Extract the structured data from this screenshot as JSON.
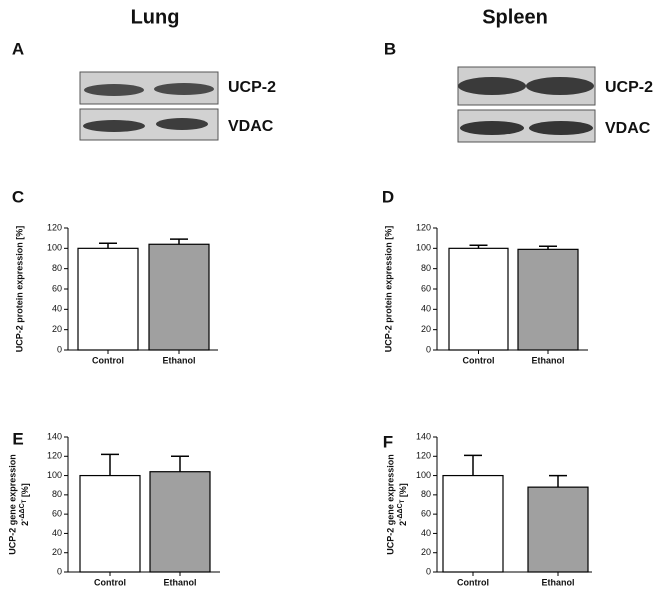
{
  "columns": [
    "Lung",
    "Spleen"
  ],
  "panel_letters": [
    "A",
    "B"
  ],
  "blots": [
    {
      "labels": [
        "UCP-2",
        "VDAC"
      ]
    },
    {
      "labels": [
        "UCP-2",
        "VDAC"
      ]
    }
  ],
  "chart_data": [
    {
      "type": "bar",
      "panel": "C",
      "ylabel": "UCP-2 protein expression [%]",
      "categories": [
        "Control",
        "Ethanol"
      ],
      "values": [
        100,
        104
      ],
      "errors": [
        5,
        5
      ],
      "colors": [
        "#ffffff",
        "#a0a0a0"
      ],
      "ylim": [
        0,
        120
      ],
      "yticks": [
        0,
        20,
        40,
        60,
        80,
        100,
        120
      ]
    },
    {
      "type": "bar",
      "panel": "D",
      "ylabel": "UCP-2 protein expression [%]",
      "categories": [
        "Control",
        "Ethanol"
      ],
      "values": [
        100,
        99
      ],
      "errors": [
        3,
        3
      ],
      "colors": [
        "#ffffff",
        "#a0a0a0"
      ],
      "ylim": [
        0,
        120
      ],
      "yticks": [
        0,
        20,
        40,
        60,
        80,
        100,
        120
      ]
    },
    {
      "type": "bar",
      "panel": "E",
      "ylabel": "UCP-2 gene expression",
      "ylabel2": {
        "base": "2",
        "exponent": "-ΔΔC",
        "exponent_sub": "T",
        "unit": " [%]"
      },
      "categories": [
        "Control",
        "Ethanol"
      ],
      "values": [
        100,
        104
      ],
      "errors": [
        22,
        16
      ],
      "colors": [
        "#ffffff",
        "#a0a0a0"
      ],
      "ylim": [
        0,
        140
      ],
      "yticks": [
        0,
        20,
        40,
        60,
        80,
        100,
        120,
        140
      ]
    },
    {
      "type": "bar",
      "panel": "F",
      "ylabel": "UCP-2 gene expression",
      "ylabel2": {
        "base": "2",
        "exponent": "-ΔΔC",
        "exponent_sub": "T",
        "unit": " [%]"
      },
      "categories": [
        "Control",
        "Ethanol"
      ],
      "values": [
        100,
        88
      ],
      "errors": [
        21,
        12
      ],
      "colors": [
        "#ffffff",
        "#a0a0a0"
      ],
      "ylim": [
        0,
        140
      ],
      "yticks": [
        0,
        20,
        40,
        60,
        80,
        100,
        120,
        140
      ]
    }
  ]
}
